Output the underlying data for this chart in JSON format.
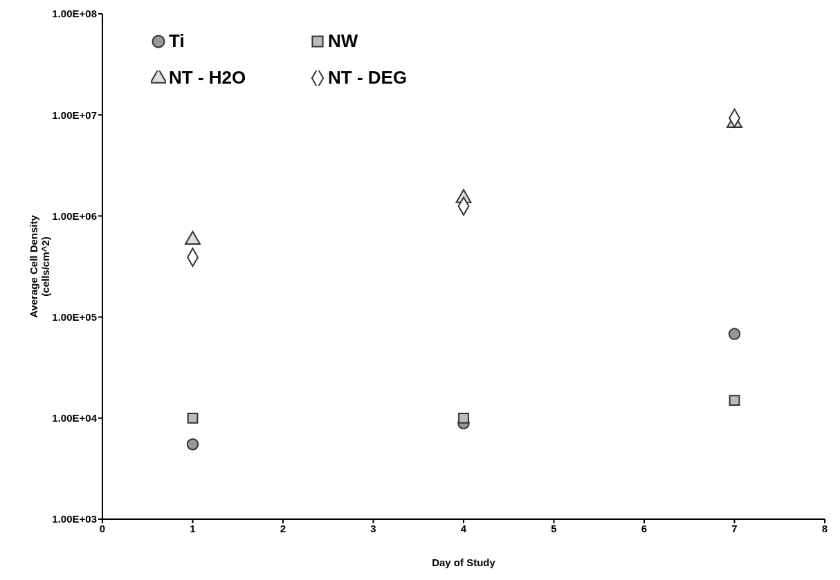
{
  "chart_data": {
    "type": "scatter",
    "xlabel": "Day of Study",
    "ylabel": "Average Cell Density\n(cells/cm^2)",
    "xlim": [
      0,
      8
    ],
    "xticks": [
      0,
      1,
      2,
      3,
      4,
      5,
      6,
      7,
      8
    ],
    "ylim": [
      1000,
      100000000
    ],
    "yticks": [
      {
        "value": 1000,
        "label": "1.00E+03"
      },
      {
        "value": 10000,
        "label": "1.00E+04"
      },
      {
        "value": 100000,
        "label": "1.00E+05"
      },
      {
        "value": 1000000,
        "label": "1.00E+06"
      },
      {
        "value": 10000000,
        "label": "1.00E+07"
      },
      {
        "value": 100000000,
        "label": "1.00E+08"
      }
    ],
    "log": "y",
    "grid": false,
    "legend": "top left",
    "x": [
      1,
      4,
      7
    ],
    "series": [
      {
        "name": "Ti",
        "color": "#999999",
        "marker": "circle",
        "values": [
          5500,
          8900,
          68000
        ]
      },
      {
        "name": "NW",
        "color": "#bbbbbb",
        "marker": "square",
        "values": [
          10000,
          10000,
          15000
        ]
      },
      {
        "name": "NT - H2O",
        "color": "#dddddd",
        "marker": "triangle",
        "values": [
          580000,
          1500000,
          8300000
        ]
      },
      {
        "name": "NT - DEG",
        "color": "#ffffff",
        "marker": "diamond",
        "values": [
          390000,
          1250000,
          9300000
        ]
      }
    ]
  }
}
